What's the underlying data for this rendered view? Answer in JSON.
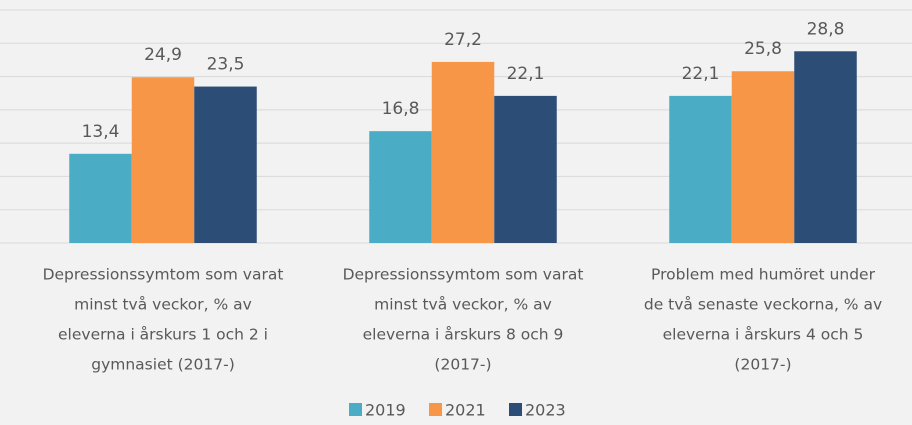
{
  "chart_data": {
    "type": "bar",
    "categories": [
      [
        "Depressionssymtom som varat",
        "minst två veckor, % av",
        "eleverna i årskurs 1 och 2 i",
        "gymnasiet  (2017-)"
      ],
      [
        "Depressionssymtom som varat",
        "minst två veckor, % av",
        "eleverna i årskurs 8 och 9",
        "(2017-)"
      ],
      [
        "Problem med humöret under",
        "de två senaste veckorna, % av",
        "eleverna i årskurs 4 och 5",
        "(2017-)"
      ]
    ],
    "series": [
      {
        "name": "2019",
        "color": "#4bacc6",
        "values": [
          13.4,
          16.8,
          22.1
        ],
        "value_labels": [
          "13,4",
          "16,8",
          "22,1"
        ]
      },
      {
        "name": "2021",
        "color": "#f79646",
        "values": [
          24.9,
          27.2,
          25.8
        ],
        "value_labels": [
          "24,9",
          "27,2",
          "25,8"
        ]
      },
      {
        "name": "2023",
        "color": "#2c4d75",
        "values": [
          23.5,
          22.1,
          28.8
        ],
        "value_labels": [
          "23,5",
          "22,1",
          "28,8"
        ]
      }
    ],
    "ylim": [
      0,
      35
    ],
    "yticks": [
      0,
      5,
      10,
      15,
      20,
      25,
      30,
      35
    ],
    "grid": true,
    "legend": "bottom"
  }
}
